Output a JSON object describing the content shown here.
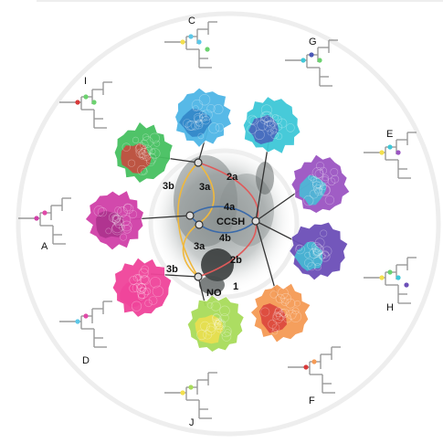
{
  "panels": [
    {
      "id": "C",
      "label": "C",
      "blob": "#4fb6e6",
      "blob2": "#2e7fc4",
      "dots": [
        "#f4e04d",
        "#5cc8e8",
        "#5cc8e8",
        "#6cd26f"
      ]
    },
    {
      "id": "G",
      "label": "G",
      "blob": "#3ec8d8",
      "blob2": "#4a58b8",
      "dots": [
        "#3ec8d8",
        "#4a58b8",
        "#6cd26f"
      ]
    },
    {
      "id": "E",
      "label": "E",
      "blob": "#9b55c2",
      "blob2": "#3ec8d8",
      "dots": [
        "#f4e04d",
        "#3ec8d8",
        "#9b55c2"
      ]
    },
    {
      "id": "H",
      "label": "H",
      "blob": "#6c4fb8",
      "blob2": "#3ec8d8",
      "dots": [
        "#f4e04d",
        "#6cd26f",
        "#3ec8d8",
        "#6c4fb8"
      ]
    },
    {
      "id": "F",
      "label": "F",
      "blob": "#f59a55",
      "blob2": "#d83a3a",
      "dots": [
        "#d83a3a",
        "#f59a55"
      ]
    },
    {
      "id": "J",
      "label": "J",
      "blob": "#a8dc5a",
      "blob2": "#f4e04d",
      "dots": [
        "#f4e04d",
        "#a8dc5a"
      ]
    },
    {
      "id": "D",
      "label": "D",
      "blob": "#f0449a",
      "blob2": "#f0449a",
      "dots": [
        "#5cc8e8",
        "#e04aa8"
      ]
    },
    {
      "id": "A",
      "label": "A",
      "blob": "#d040a8",
      "blob2": "#a8308a",
      "dots": [
        "#d040a8",
        "#e04aa8"
      ]
    },
    {
      "id": "I",
      "label": "I",
      "blob": "#46c060",
      "blob2": "#d83a3a",
      "dots": [
        "#d83a3a",
        "#6cd26f",
        "#6cd26f"
      ]
    }
  ],
  "map_labels": [
    "2a",
    "3a",
    "3b",
    "4a",
    "CCSH",
    "4b",
    "3a",
    "3b",
    "2b",
    "1",
    "NO"
  ]
}
